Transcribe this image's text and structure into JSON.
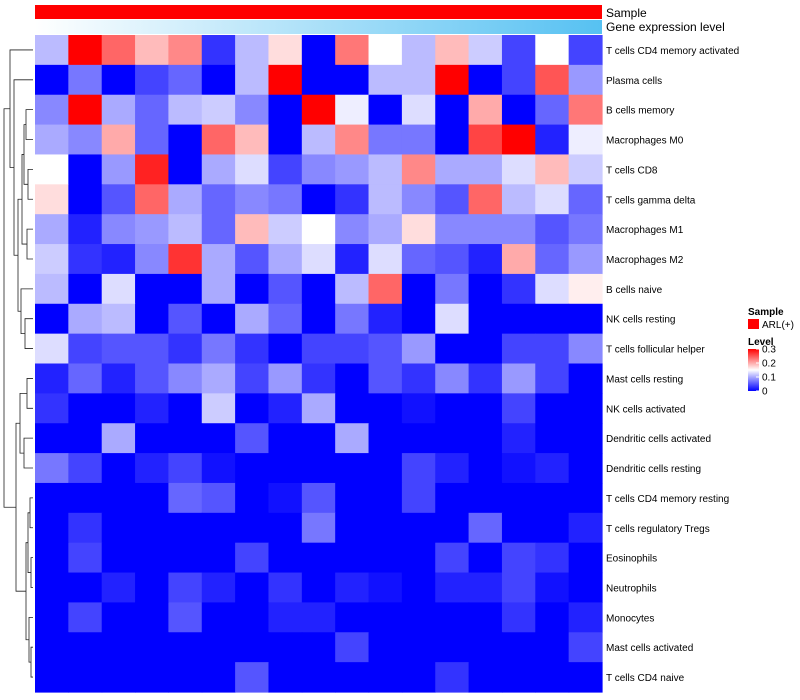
{
  "chart_data": {
    "type": "heatmap",
    "annotation_tracks": [
      {
        "label": "Sample",
        "color": "#ff0000"
      },
      {
        "label": "Gene expression level",
        "gradient_start": "#ffffff",
        "gradient_end": "#56c1f2"
      }
    ],
    "rows": [
      "T cells CD4 memory activated",
      "Plasma cells",
      "B cells memory",
      "Macrophages M0",
      "T cells CD8",
      "T cells gamma delta",
      "Macrophages M1",
      "Macrophages M2",
      "B cells naive",
      "NK cells resting",
      "T cells follicular helper",
      "Mast cells resting",
      "NK cells activated",
      "Dendritic cells activated",
      "Dendritic cells resting",
      "T cells CD4 memory resting",
      "T cells regulatory  Tregs",
      "Eosinophils",
      "Neutrophils",
      "Monocytes",
      "Mast cells activated",
      "T cells CD4 naive"
    ],
    "n_columns": 17,
    "values": [
      [
        0.11,
        0.3,
        0.24,
        0.19,
        0.22,
        0.03,
        0.11,
        0.17,
        0.0,
        0.23,
        0.15,
        0.11,
        0.19,
        0.12,
        0.04,
        0.15,
        0.04
      ],
      [
        0.0,
        0.07,
        0.0,
        0.04,
        0.06,
        0.0,
        0.11,
        0.3,
        0.0,
        0.0,
        0.11,
        0.11,
        0.3,
        0.0,
        0.04,
        0.25,
        0.09
      ],
      [
        0.08,
        0.3,
        0.1,
        0.06,
        0.11,
        0.12,
        0.08,
        0.0,
        0.3,
        0.14,
        0.0,
        0.13,
        0.0,
        0.2,
        0.0,
        0.06,
        0.23
      ],
      [
        0.1,
        0.08,
        0.2,
        0.06,
        0.0,
        0.24,
        0.19,
        0.0,
        0.11,
        0.22,
        0.07,
        0.07,
        0.0,
        0.26,
        0.3,
        0.02,
        0.14
      ],
      [
        0.15,
        0.0,
        0.09,
        0.28,
        0.0,
        0.1,
        0.13,
        0.04,
        0.08,
        0.09,
        0.11,
        0.22,
        0.1,
        0.1,
        0.13,
        0.19,
        0.12
      ],
      [
        0.17,
        0.0,
        0.05,
        0.24,
        0.1,
        0.06,
        0.08,
        0.07,
        0.0,
        0.03,
        0.11,
        0.08,
        0.05,
        0.24,
        0.11,
        0.13,
        0.06
      ],
      [
        0.1,
        0.02,
        0.08,
        0.09,
        0.11,
        0.06,
        0.19,
        0.12,
        0.15,
        0.08,
        0.1,
        0.17,
        0.08,
        0.08,
        0.08,
        0.05,
        0.07
      ],
      [
        0.12,
        0.03,
        0.02,
        0.08,
        0.27,
        0.1,
        0.05,
        0.1,
        0.13,
        0.02,
        0.13,
        0.06,
        0.05,
        0.02,
        0.2,
        0.06,
        0.09
      ],
      [
        0.11,
        0.0,
        0.13,
        0.0,
        0.0,
        0.1,
        0.0,
        0.05,
        0.0,
        0.11,
        0.24,
        0.0,
        0.07,
        0.0,
        0.03,
        0.13,
        0.16
      ],
      [
        0.0,
        0.1,
        0.11,
        0.0,
        0.05,
        0.0,
        0.1,
        0.06,
        0.0,
        0.07,
        0.02,
        0.0,
        0.13,
        0.0,
        0.0,
        0.0,
        0.0
      ],
      [
        0.13,
        0.04,
        0.05,
        0.05,
        0.03,
        0.07,
        0.03,
        0.0,
        0.04,
        0.04,
        0.05,
        0.09,
        0.0,
        0.0,
        0.04,
        0.04,
        0.08
      ],
      [
        0.02,
        0.06,
        0.02,
        0.05,
        0.08,
        0.1,
        0.04,
        0.09,
        0.03,
        0.0,
        0.05,
        0.03,
        0.08,
        0.03,
        0.09,
        0.04,
        0.0
      ],
      [
        0.03,
        0.0,
        0.0,
        0.02,
        0.0,
        0.12,
        0.0,
        0.02,
        0.1,
        0.0,
        0.0,
        0.01,
        0.0,
        0.0,
        0.04,
        0.0,
        0.0
      ],
      [
        0.0,
        0.0,
        0.1,
        0.0,
        0.0,
        0.0,
        0.05,
        0.0,
        0.0,
        0.1,
        0.0,
        0.0,
        0.0,
        0.0,
        0.02,
        0.0,
        0.0
      ],
      [
        0.07,
        0.04,
        0.0,
        0.02,
        0.04,
        0.01,
        0.0,
        0.0,
        0.0,
        0.0,
        0.0,
        0.04,
        0.02,
        0.0,
        0.01,
        0.02,
        0.0
      ],
      [
        0.0,
        0.0,
        0.0,
        0.0,
        0.06,
        0.05,
        0.0,
        0.01,
        0.05,
        0.0,
        0.0,
        0.04,
        0.0,
        0.0,
        0.0,
        0.0,
        0.0
      ],
      [
        0.0,
        0.03,
        0.0,
        0.0,
        0.0,
        0.0,
        0.0,
        0.0,
        0.07,
        0.0,
        0.0,
        0.0,
        0.0,
        0.06,
        0.0,
        0.0,
        0.02
      ],
      [
        0.0,
        0.04,
        0.0,
        0.0,
        0.0,
        0.0,
        0.04,
        0.0,
        0.0,
        0.0,
        0.0,
        0.0,
        0.04,
        0.0,
        0.04,
        0.03,
        0.0
      ],
      [
        0.0,
        0.0,
        0.02,
        0.0,
        0.04,
        0.02,
        0.0,
        0.03,
        0.0,
        0.02,
        0.01,
        0.0,
        0.02,
        0.02,
        0.04,
        0.01,
        0.0
      ],
      [
        0.0,
        0.04,
        0.0,
        0.0,
        0.05,
        0.0,
        0.0,
        0.02,
        0.02,
        0.0,
        0.0,
        0.0,
        0.0,
        0.0,
        0.03,
        0.0,
        0.02
      ],
      [
        0.0,
        0.0,
        0.0,
        0.0,
        0.0,
        0.0,
        0.0,
        0.0,
        0.0,
        0.04,
        0.0,
        0.0,
        0.0,
        0.0,
        0.0,
        0.0,
        0.04
      ],
      [
        0.0,
        0.0,
        0.0,
        0.0,
        0.0,
        0.0,
        0.05,
        0.0,
        0.0,
        0.0,
        0.0,
        0.0,
        0.03,
        0.0,
        0.0,
        0.0,
        0.0
      ]
    ],
    "color_scale": {
      "min": 0,
      "mid": 0.15,
      "max": 0.3,
      "low": "#0000ff",
      "midcolor": "#ffffff",
      "high": "#ff0000"
    },
    "legend": {
      "sample_title": "Sample",
      "sample_label": "ARL(+)",
      "sample_color": "#ff0000",
      "level_title": "Level",
      "level_ticks": [
        {
          "label": "0.3",
          "value": 0.3
        },
        {
          "label": "0.2",
          "value": 0.2
        },
        {
          "label": "0.1",
          "value": 0.1
        },
        {
          "label": "0",
          "value": 0
        }
      ]
    }
  }
}
